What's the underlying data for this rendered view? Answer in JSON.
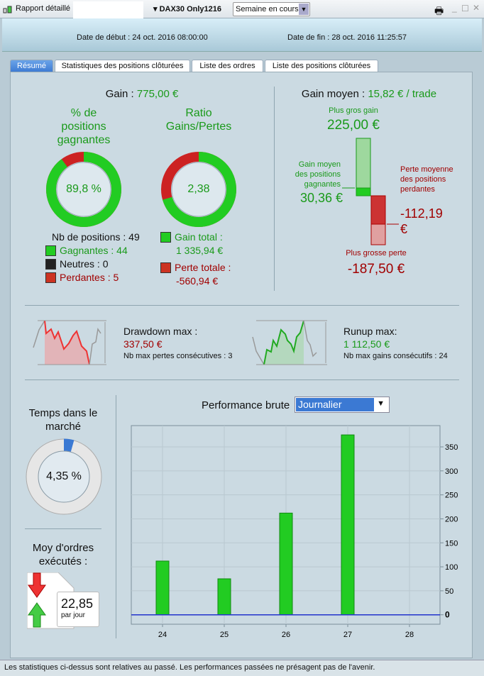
{
  "titlebar": {
    "title": "Rapport détaillé",
    "instrument": "DAX30 Only1216",
    "period": "Semaine en cours"
  },
  "header": {
    "start_label": "Date de début :",
    "start": "24 oct. 2016 08:00:00",
    "end_label": "Date de fin :",
    "end": "28 oct. 2016 11:25:57"
  },
  "tabs": [
    {
      "label": "Résumé",
      "active": true
    },
    {
      "label": "Statistiques des positions clôturées"
    },
    {
      "label": "Liste des ordres"
    },
    {
      "label": "Liste des positions clôturées"
    }
  ],
  "summary": {
    "gain_label": "Gain :",
    "gain": "775,00 €",
    "win_pct_title": "% de positions gagnantes",
    "win_pct": "89,8 %",
    "win_pct_value": 89.8,
    "ratio_title": "Ratio Gains/Pertes",
    "ratio": "2,38",
    "ratio_gain_share": 70.4,
    "nb_positions": "Nb de positions : 49",
    "winners": "Gagnantes : 44",
    "neutral": "Neutres : 0",
    "losers": "Perdantes : 5",
    "total_gain_label": "Gain total :",
    "total_gain": "1 335,94 €",
    "total_loss_label": "Perte totale :",
    "total_loss": "-560,94 €",
    "avg_gain_label": "Gain moyen :",
    "avg_gain": "15,82 € / trade",
    "biggest_gain_label": "Plus gros gain",
    "biggest_gain": "225,00 €",
    "avg_win_label": "Gain moyen des positions gagnantes",
    "avg_win": "30,36 €",
    "avg_loss_label": "Perte moyenne des positions perdantes",
    "avg_loss": "-112,19 €",
    "biggest_loss_label": "Plus grosse perte",
    "biggest_loss": "-187,50 €"
  },
  "drawdown": {
    "label": "Drawdown max :",
    "value": "337,50 €",
    "sub": "Nb max pertes consécutives : 3"
  },
  "runup": {
    "label": "Runup max:",
    "value": "1 112,50 €",
    "sub": "Nb max gains consécutifs : 24"
  },
  "market": {
    "title": "Temps dans le marché",
    "value": "4,35 %",
    "pct": 4.35
  },
  "orders": {
    "title": "Moy d'ordres exécutés :",
    "value": "22,85",
    "unit": "par jour"
  },
  "perf": {
    "title": "Performance brute",
    "select": "Journalier"
  },
  "chart_data": {
    "type": "bar",
    "categories": [
      "24",
      "25",
      "26",
      "27",
      "28"
    ],
    "values": [
      112,
      75,
      212,
      375,
      0
    ],
    "ylim": [
      -20,
      390
    ],
    "yticks": [
      0,
      50,
      100,
      150,
      200,
      250,
      300,
      350
    ],
    "grid": true,
    "color": "#22cc22"
  },
  "colors": {
    "green": "#1a9a1a",
    "red": "#a10000",
    "accent": "#3b79d3"
  },
  "footer": "Les statistiques ci-dessus sont relatives au passé. Les performances passées ne présagent pas de l'avenir."
}
